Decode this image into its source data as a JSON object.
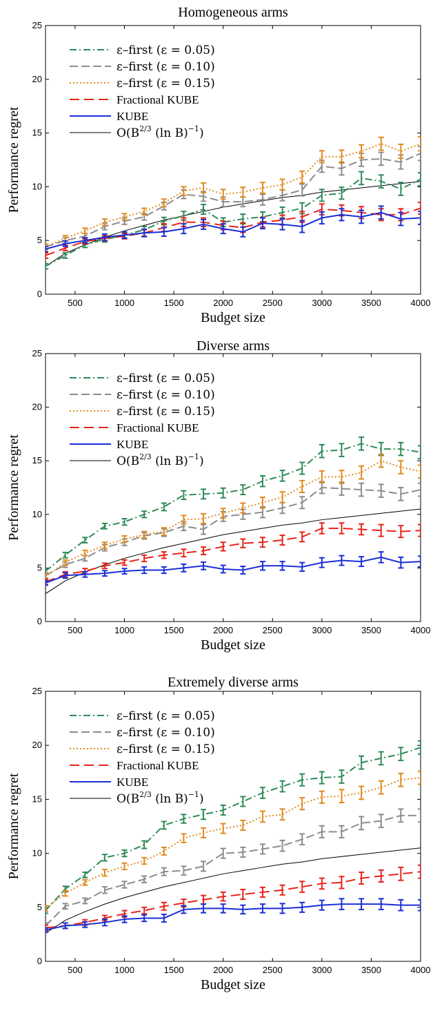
{
  "chart_data": [
    {
      "type": "line",
      "title": "Homogeneous arms",
      "xlabel": "Budget size",
      "ylabel": "Performance regret",
      "xlim": [
        200,
        4000
      ],
      "ylim": [
        0,
        25
      ],
      "xticks": [
        "500",
        "1000",
        "1500",
        "2000",
        "2500",
        "3000",
        "3500",
        "4000"
      ],
      "yticks": [
        "0",
        "5",
        "10",
        "15",
        "20",
        "25"
      ],
      "grid": false,
      "legend_position": "top-left",
      "x": [
        200,
        400,
        600,
        800,
        1000,
        1200,
        1400,
        1600,
        1800,
        2000,
        2200,
        2400,
        2600,
        2800,
        3000,
        3200,
        3400,
        3600,
        3800,
        4000
      ],
      "series": [
        {
          "name": "ε–first (ε = 0.05)",
          "color": "#2e8b57",
          "dash": "10,4,2,4",
          "values": [
            2.6,
            3.6,
            4.6,
            5.1,
            5.5,
            6.0,
            6.8,
            7.3,
            7.9,
            6.7,
            7.0,
            7.2,
            7.6,
            8.0,
            9.2,
            9.4,
            10.8,
            10.5,
            9.8,
            10.7
          ],
          "errors": [
            0.25,
            0.25,
            0.25,
            0.25,
            0.25,
            0.3,
            0.35,
            0.4,
            0.45,
            0.4,
            0.45,
            0.45,
            0.5,
            0.5,
            0.55,
            0.55,
            0.6,
            0.6,
            0.6,
            0.6
          ]
        },
        {
          "name": "ε–first (ε = 0.10)",
          "color": "#8c8c8c",
          "dash": "12,5",
          "values": [
            4.4,
            5.0,
            5.4,
            6.3,
            6.8,
            7.2,
            8.2,
            9.3,
            9.1,
            8.6,
            8.6,
            8.8,
            9.2,
            9.7,
            11.9,
            11.7,
            12.5,
            12.6,
            12.3,
            13.1
          ],
          "errors": [
            0.25,
            0.25,
            0.25,
            0.3,
            0.3,
            0.3,
            0.35,
            0.4,
            0.45,
            0.45,
            0.45,
            0.5,
            0.5,
            0.55,
            0.55,
            0.6,
            0.6,
            0.6,
            0.65,
            0.65
          ]
        },
        {
          "name": "ε–first (ε = 0.15)",
          "color": "#e08a1e",
          "dash": "2,3",
          "values": [
            4.4,
            5.2,
            5.9,
            6.7,
            7.2,
            7.7,
            8.5,
            9.6,
            9.9,
            9.3,
            9.5,
            9.9,
            10.2,
            10.9,
            12.8,
            12.8,
            13.3,
            14.0,
            13.3,
            14.0
          ],
          "errors": [
            0.25,
            0.25,
            0.25,
            0.3,
            0.3,
            0.3,
            0.35,
            0.4,
            0.45,
            0.45,
            0.45,
            0.5,
            0.5,
            0.55,
            0.55,
            0.6,
            0.6,
            0.6,
            0.65,
            0.65
          ]
        },
        {
          "name": "Fractional KUBE",
          "color": "#e8231a",
          "dash": "14,7",
          "values": [
            3.6,
            4.3,
            4.9,
            5.2,
            5.4,
            5.7,
            6.2,
            6.7,
            6.7,
            6.4,
            6.2,
            6.7,
            6.9,
            7.2,
            7.9,
            7.8,
            7.6,
            7.4,
            7.4,
            8.0
          ],
          "errors": [
            0.25,
            0.25,
            0.25,
            0.25,
            0.25,
            0.3,
            0.35,
            0.4,
            0.4,
            0.4,
            0.45,
            0.45,
            0.45,
            0.5,
            0.5,
            0.5,
            0.55,
            0.55,
            0.55,
            0.55
          ]
        },
        {
          "name": "KUBE",
          "color": "#1a2fd6",
          "dash": "",
          "values": [
            4.2,
            4.7,
            5.0,
            5.3,
            5.5,
            5.7,
            5.8,
            6.1,
            6.5,
            6.1,
            5.8,
            6.6,
            6.5,
            6.3,
            7.1,
            7.4,
            7.2,
            7.6,
            7.0,
            7.1
          ],
          "errors": [
            0.25,
            0.25,
            0.25,
            0.3,
            0.3,
            0.35,
            0.4,
            0.45,
            0.45,
            0.45,
            0.45,
            0.5,
            0.5,
            0.55,
            0.55,
            0.55,
            0.6,
            0.6,
            0.6,
            0.6
          ]
        }
      ]
    },
    {
      "type": "line",
      "title": "Diverse arms",
      "xlabel": "Budget size",
      "ylabel": "Performance regret",
      "xlim": [
        200,
        4000
      ],
      "ylim": [
        0,
        25
      ],
      "xticks": [
        "500",
        "1000",
        "1500",
        "2000",
        "2500",
        "3000",
        "3500",
        "4000"
      ],
      "yticks": [
        "0",
        "5",
        "10",
        "15",
        "20",
        "25"
      ],
      "grid": false,
      "legend_position": "top-left",
      "x": [
        200,
        400,
        600,
        800,
        1000,
        1200,
        1400,
        1600,
        1800,
        2000,
        2200,
        2400,
        2600,
        2800,
        3000,
        3200,
        3400,
        3600,
        3800,
        4000
      ],
      "series": [
        {
          "name": "ε–first (ε = 0.05)",
          "color": "#2e8b57",
          "dash": "10,4,2,4",
          "values": [
            4.7,
            6.2,
            7.6,
            8.9,
            9.3,
            10.0,
            10.7,
            11.8,
            11.9,
            12.0,
            12.3,
            13.1,
            13.6,
            14.3,
            15.9,
            16.0,
            16.6,
            16.1,
            16.1,
            15.8
          ],
          "errors": [
            0.25,
            0.25,
            0.25,
            0.25,
            0.3,
            0.3,
            0.35,
            0.4,
            0.45,
            0.45,
            0.45,
            0.5,
            0.5,
            0.55,
            0.6,
            0.6,
            0.6,
            0.6,
            0.6,
            0.6
          ]
        },
        {
          "name": "ε–first (ε = 0.10)",
          "color": "#8c8c8c",
          "dash": "12,5",
          "values": [
            4.3,
            5.3,
            5.9,
            6.9,
            7.4,
            8.0,
            8.3,
            8.9,
            8.6,
            9.8,
            10.0,
            10.2,
            10.6,
            11.1,
            12.5,
            12.4,
            12.3,
            12.2,
            11.9,
            12.3
          ],
          "errors": [
            0.25,
            0.25,
            0.25,
            0.3,
            0.3,
            0.3,
            0.35,
            0.4,
            0.45,
            0.45,
            0.45,
            0.5,
            0.5,
            0.55,
            0.55,
            0.6,
            0.6,
            0.6,
            0.6,
            0.6
          ]
        },
        {
          "name": "ε–first (ε = 0.15)",
          "color": "#e08a1e",
          "dash": "2,3",
          "values": [
            4.2,
            5.5,
            6.4,
            7.1,
            7.7,
            8.1,
            8.4,
            9.5,
            9.6,
            10.1,
            10.6,
            11.1,
            11.6,
            12.6,
            13.5,
            13.5,
            13.9,
            15.0,
            14.4,
            14.0
          ],
          "errors": [
            0.25,
            0.25,
            0.25,
            0.3,
            0.3,
            0.3,
            0.35,
            0.4,
            0.45,
            0.45,
            0.45,
            0.5,
            0.5,
            0.55,
            0.55,
            0.6,
            0.6,
            0.6,
            0.6,
            0.6
          ]
        },
        {
          "name": "Fractional KUBE",
          "color": "#e8231a",
          "dash": "14,7",
          "values": [
            3.7,
            4.4,
            4.7,
            5.2,
            5.5,
            5.9,
            6.2,
            6.4,
            6.6,
            7.0,
            7.3,
            7.4,
            7.6,
            7.9,
            8.7,
            8.7,
            8.6,
            8.5,
            8.4,
            8.5
          ],
          "errors": [
            0.25,
            0.25,
            0.25,
            0.25,
            0.25,
            0.3,
            0.3,
            0.35,
            0.35,
            0.4,
            0.4,
            0.45,
            0.45,
            0.45,
            0.5,
            0.5,
            0.5,
            0.55,
            0.55,
            0.55
          ]
        },
        {
          "name": "KUBE",
          "color": "#1a2fd6",
          "dash": "",
          "values": [
            3.6,
            4.3,
            4.4,
            4.5,
            4.7,
            4.8,
            4.8,
            5.0,
            5.2,
            4.9,
            4.8,
            5.2,
            5.2,
            5.1,
            5.5,
            5.7,
            5.6,
            6.0,
            5.5,
            5.6
          ],
          "errors": [
            0.2,
            0.25,
            0.25,
            0.25,
            0.25,
            0.3,
            0.3,
            0.35,
            0.35,
            0.35,
            0.35,
            0.4,
            0.4,
            0.4,
            0.45,
            0.45,
            0.45,
            0.5,
            0.5,
            0.5
          ]
        }
      ]
    },
    {
      "type": "line",
      "title": "Extremely diverse arms",
      "xlabel": "Budget size",
      "ylabel": "Performance regret",
      "xlim": [
        200,
        4000
      ],
      "ylim": [
        0,
        25
      ],
      "xticks": [
        "500",
        "1000",
        "1500",
        "2000",
        "2500",
        "3000",
        "3500",
        "4000"
      ],
      "yticks": [
        "0",
        "5",
        "10",
        "15",
        "20",
        "25"
      ],
      "grid": false,
      "legend_position": "top-left",
      "x": [
        200,
        400,
        600,
        800,
        1000,
        1200,
        1400,
        1600,
        1800,
        2000,
        2200,
        2400,
        2600,
        2800,
        3000,
        3200,
        3400,
        3600,
        3800,
        4000
      ],
      "series": [
        {
          "name": "ε–first (ε = 0.05)",
          "color": "#2e8b57",
          "dash": "10,4,2,4",
          "values": [
            4.7,
            6.7,
            8.0,
            9.6,
            10.0,
            10.8,
            12.6,
            13.2,
            13.6,
            14.0,
            14.8,
            15.6,
            16.2,
            16.8,
            17.0,
            17.1,
            18.4,
            18.8,
            19.2,
            19.8
          ],
          "errors": [
            0.25,
            0.25,
            0.25,
            0.3,
            0.3,
            0.35,
            0.35,
            0.4,
            0.45,
            0.45,
            0.45,
            0.5,
            0.5,
            0.55,
            0.55,
            0.6,
            0.6,
            0.6,
            0.6,
            0.6
          ]
        },
        {
          "name": "ε–first (ε = 0.10)",
          "color": "#8c8c8c",
          "dash": "12,5",
          "values": [
            3.3,
            5.1,
            5.6,
            6.6,
            7.1,
            7.6,
            8.3,
            8.4,
            8.8,
            10.0,
            10.1,
            10.4,
            10.7,
            11.3,
            12.0,
            12.0,
            12.8,
            13.0,
            13.5,
            13.5
          ],
          "errors": [
            0.25,
            0.25,
            0.25,
            0.3,
            0.3,
            0.3,
            0.35,
            0.4,
            0.45,
            0.45,
            0.45,
            0.45,
            0.5,
            0.5,
            0.55,
            0.55,
            0.6,
            0.6,
            0.6,
            0.6
          ]
        },
        {
          "name": "ε–first (ε = 0.15)",
          "color": "#e08a1e",
          "dash": "2,3",
          "values": [
            4.9,
            6.3,
            7.3,
            8.2,
            8.8,
            9.3,
            10.2,
            11.4,
            11.9,
            12.3,
            12.6,
            13.4,
            13.6,
            14.6,
            15.2,
            15.3,
            15.6,
            16.1,
            16.8,
            17.0
          ],
          "errors": [
            0.25,
            0.25,
            0.25,
            0.3,
            0.3,
            0.3,
            0.35,
            0.4,
            0.45,
            0.45,
            0.45,
            0.5,
            0.5,
            0.55,
            0.55,
            0.6,
            0.6,
            0.6,
            0.6,
            0.6
          ]
        },
        {
          "name": "Fractional KUBE",
          "color": "#e8231a",
          "dash": "14,7",
          "values": [
            3.1,
            3.3,
            3.6,
            4.0,
            4.4,
            4.7,
            5.1,
            5.4,
            5.7,
            6.0,
            6.2,
            6.4,
            6.6,
            6.9,
            7.2,
            7.3,
            7.7,
            7.9,
            8.1,
            8.3
          ],
          "errors": [
            0.25,
            0.25,
            0.25,
            0.25,
            0.3,
            0.3,
            0.35,
            0.35,
            0.4,
            0.4,
            0.45,
            0.45,
            0.45,
            0.5,
            0.5,
            0.55,
            0.55,
            0.55,
            0.6,
            0.6
          ]
        },
        {
          "name": "KUBE",
          "color": "#1a2fd6",
          "dash": "",
          "values": [
            2.9,
            3.3,
            3.4,
            3.6,
            3.9,
            4.0,
            4.0,
            4.8,
            4.9,
            4.9,
            4.8,
            4.9,
            4.9,
            5.0,
            5.2,
            5.3,
            5.3,
            5.3,
            5.2,
            5.2
          ],
          "errors": [
            0.2,
            0.25,
            0.25,
            0.3,
            0.3,
            0.3,
            0.35,
            0.35,
            0.4,
            0.4,
            0.4,
            0.4,
            0.45,
            0.45,
            0.45,
            0.5,
            0.5,
            0.5,
            0.5,
            0.5
          ]
        }
      ]
    }
  ],
  "legend": {
    "eps_first_label": "ε–first",
    "eps_005": "(ε = 0.05)",
    "eps_010": "(ε = 0.10)",
    "eps_015": "(ε = 0.15)",
    "fractional_kube": "Fractional KUBE",
    "kube": "KUBE",
    "bound_prefix": "O(B",
    "bound_exp": "2/3",
    "bound_suffix": " (ln B)",
    "bound_inv": "−1",
    "bound_close": ")"
  },
  "bound_curve": {
    "name": "O(B^(2/3) (ln B)^-1)",
    "color": "#000000",
    "formula": "B^(2/3) / ln(B) scaled",
    "values_at_x": [
      2.6,
      3.8,
      4.6,
      5.3,
      5.9,
      6.4,
      6.9,
      7.3,
      7.7,
      8.1,
      8.4,
      8.7,
      9.0,
      9.2,
      9.5,
      9.7,
      9.9,
      10.1,
      10.3,
      10.5
    ]
  }
}
